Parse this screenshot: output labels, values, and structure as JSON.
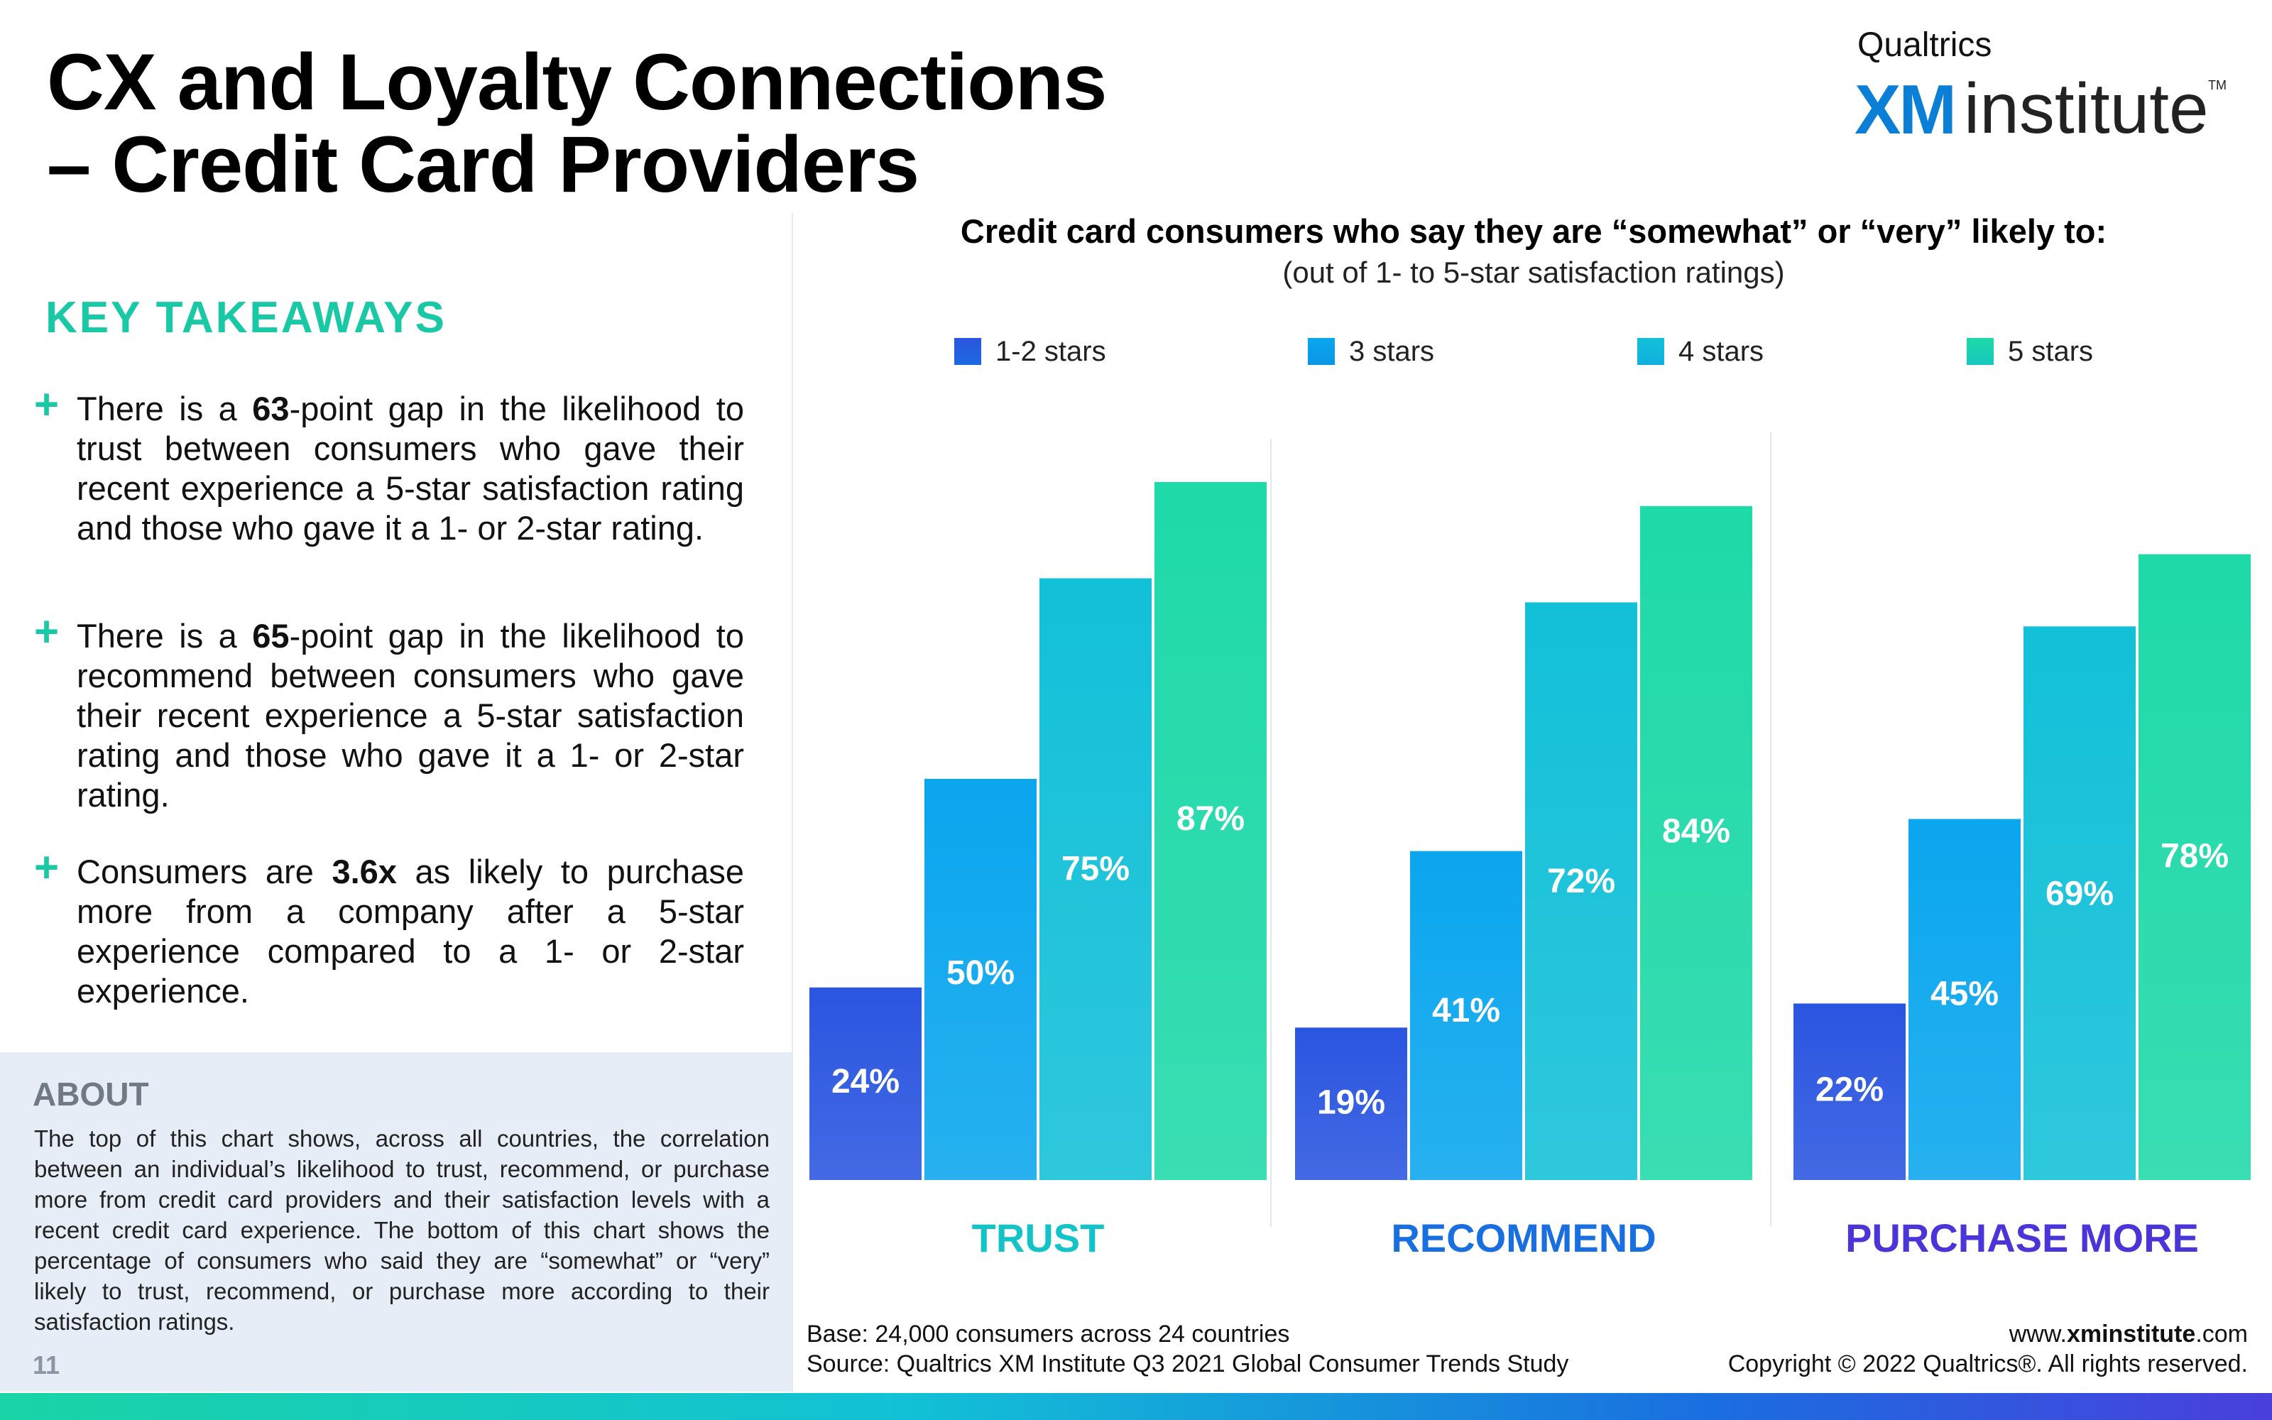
{
  "header": {
    "title_line1": "CX and Loyalty Connections",
    "title_line2": "– Credit Card Providers"
  },
  "logo": {
    "small": "Qualtrics",
    "xm": "XM",
    "institute": "institute",
    "tm": "TM"
  },
  "takeaways": {
    "heading": "KEY TAKEAWAYS",
    "items": [
      {
        "pre": "There is a ",
        "bold": "63",
        "post": "-point gap in the likelihood to trust between consumers who gave their recent experience a 5-star satisfaction rating and those who gave it a 1- or 2-star rating."
      },
      {
        "pre": "There is a ",
        "bold": "65",
        "post": "-point gap in the likelihood to recommend between consumers who gave their recent experience a 5-star satisfaction rating and those who gave it a 1- or 2-star rating."
      },
      {
        "pre": "Consumers are ",
        "bold": "3.6x",
        "post": " as likely to purchase more from a company after a 5-star experience compared to a 1- or 2-star experience."
      }
    ]
  },
  "about": {
    "heading": "ABOUT",
    "text": "The top of this chart shows, across all countries, the correlation between an individual’s likelihood to trust, recommend, or purchase more from credit card providers and their satisfaction levels with a recent credit card experience. The bottom of this chart shows the percentage of consumers who said they are “somewhat” or “very” likely to trust, recommend, or purchase more according to their satisfaction ratings.",
    "page_number": "11"
  },
  "chart_data": {
    "type": "bar",
    "title": "Credit card consumers who say they are “somewhat” or “very” likely to:",
    "subtitle": "(out of 1- to 5-star satisfaction ratings)",
    "categories": [
      "TRUST",
      "RECOMMEND",
      "PURCHASE MORE"
    ],
    "series": [
      {
        "name": "1-2 stars",
        "values": [
          24,
          19,
          22
        ],
        "labels": [
          "24%",
          "19%",
          "22%"
        ],
        "color": "#2a55e0"
      },
      {
        "name": "3 stars",
        "values": [
          50,
          41,
          45
        ],
        "labels": [
          "50%",
          "41%",
          "45%"
        ],
        "color": "#0aa6ee"
      },
      {
        "name": "4 stars",
        "values": [
          75,
          72,
          69
        ],
        "labels": [
          "75%",
          "72%",
          "69%"
        ],
        "color": "#12c0d8"
      },
      {
        "name": "5 stars",
        "values": [
          87,
          84,
          78
        ],
        "labels": [
          "87%",
          "84%",
          "78%"
        ],
        "color": "#1ed9a8"
      }
    ],
    "category_colors": [
      "#14c3c8",
      "#1a6fe0",
      "#4a35d8"
    ],
    "ylim": [
      0,
      100
    ],
    "legend_position": "top",
    "grid": false
  },
  "footer": {
    "base": "Base: 24,000 consumers across 24 countries",
    "source": "Source: Qualtrics XM Institute Q3 2021 Global Consumer Trends Study",
    "url_pre": "www.",
    "url_bold": "xminstitute",
    "url_post": ".com",
    "copyright": "Copyright © 2022 Qualtrics®. All rights reserved."
  }
}
